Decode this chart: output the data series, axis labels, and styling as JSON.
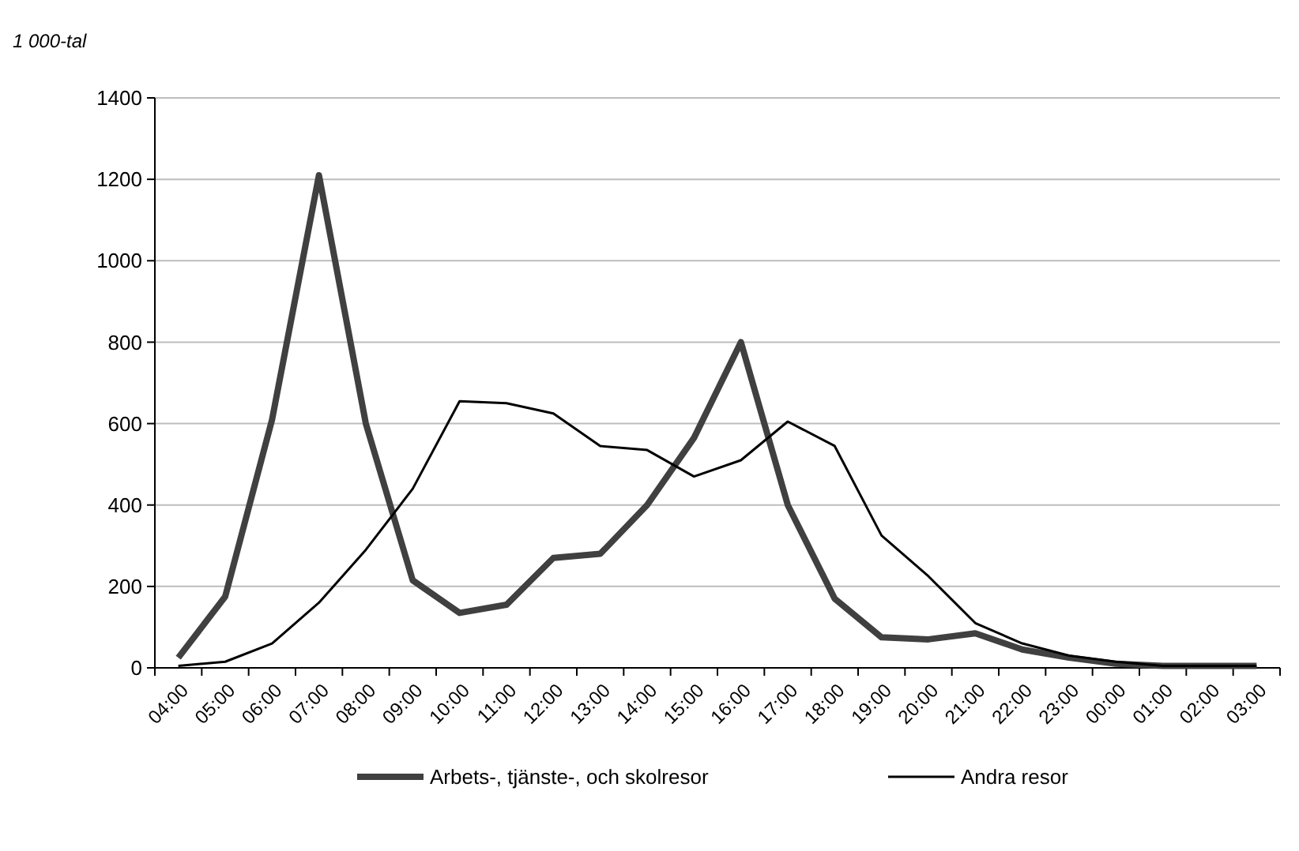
{
  "chart_data": {
    "type": "line",
    "ylabel": "1 000-tal",
    "categories": [
      "04:00",
      "05:00",
      "06:00",
      "07:00",
      "08:00",
      "09:00",
      "10:00",
      "11:00",
      "12:00",
      "13:00",
      "14:00",
      "15:00",
      "16:00",
      "17:00",
      "18:00",
      "19:00",
      "20:00",
      "21:00",
      "22:00",
      "23:00",
      "00:00",
      "01:00",
      "02:00",
      "03:00"
    ],
    "series": [
      {
        "name": "Arbets-, tjänste-, och skolresor",
        "color": "#404040",
        "values": [
          25,
          175,
          610,
          1210,
          600,
          215,
          135,
          155,
          270,
          280,
          400,
          565,
          800,
          400,
          170,
          75,
          70,
          85,
          45,
          25,
          10,
          5,
          5,
          5
        ]
      },
      {
        "name": "Andra resor",
        "color": "#000000",
        "values": [
          5,
          15,
          60,
          160,
          290,
          440,
          655,
          650,
          625,
          545,
          535,
          470,
          510,
          605,
          545,
          325,
          225,
          110,
          60,
          30,
          15,
          5,
          5,
          5
        ]
      }
    ],
    "ylim": [
      0,
      1400
    ],
    "yticks": [
      0,
      200,
      400,
      600,
      800,
      1000,
      1200,
      1400
    ],
    "grid": "y",
    "legend": "bottom",
    "marker": "none",
    "line_style": "solid"
  }
}
